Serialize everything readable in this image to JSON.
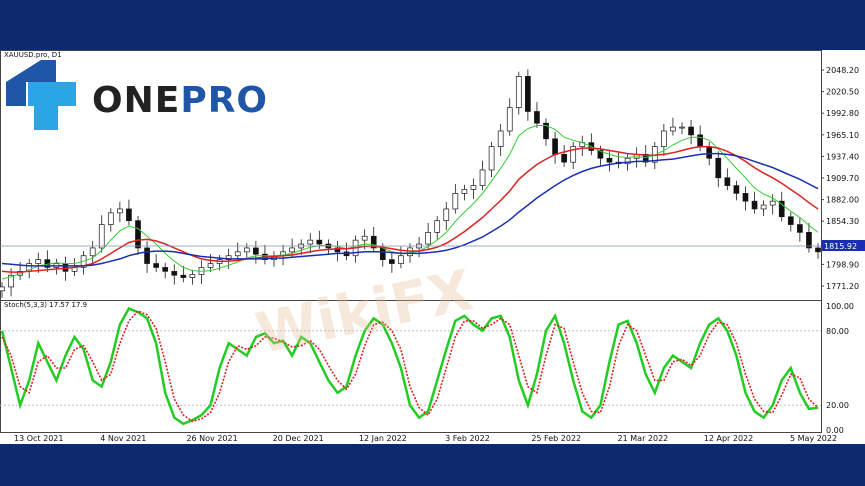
{
  "chart": {
    "symbol_label": "XAUUSD.pro, D1",
    "current_price": "1815.92",
    "stoch_label": "Stoch(5,3,3) 17.57 17.9",
    "brand": {
      "part1": "ONE",
      "part2": "PRO"
    },
    "watermark": "WikiFX",
    "colors": {
      "price_line": "#1a1a1a",
      "ma_fast": "#33cc33",
      "ma_mid": "#dd2222",
      "ma_slow": "#1a2fb0",
      "stoch_main": "#22cc22",
      "stoch_signal": "#dd2222",
      "current_price_bg": "#1a2fb0",
      "logo_blue": "#2aa6e6"
    }
  },
  "chart_data": [
    {
      "type": "line",
      "title": "",
      "ylim": [
        1771.2,
        2048.2
      ],
      "y_ticks": [
        "2048.20",
        "2020.50",
        "1992.80",
        "1965.10",
        "1937.40",
        "1909.70",
        "1882.00",
        "1854.30",
        "1826.60",
        "1798.90",
        "1771.20"
      ],
      "x_ticks": [
        "13 Oct 2021",
        "4 Nov 2021",
        "26 Nov 2021",
        "20 Dec 2021",
        "12 Jan 2022",
        "3 Feb 2022",
        "25 Feb 2022",
        "21 Mar 2022",
        "12 Apr 2022",
        "5 May 2022"
      ],
      "series": [
        {
          "values": [
            1770,
            1785,
            1790,
            1800,
            1805,
            1795,
            1800,
            1790,
            1795,
            1810,
            1820,
            1850,
            1865,
            1870,
            1855,
            1820,
            1800,
            1795,
            1790,
            1785,
            1782,
            1786,
            1795,
            1800,
            1805,
            1810,
            1815,
            1820,
            1812,
            1805,
            1810,
            1815,
            1820,
            1825,
            1830,
            1825,
            1820,
            1815,
            1810,
            1830,
            1835,
            1820,
            1805,
            1800,
            1810,
            1820,
            1825,
            1840,
            1855,
            1870,
            1890,
            1895,
            1900,
            1920,
            1950,
            1970,
            2000,
            2040,
            1995,
            1980,
            1960,
            1940,
            1930,
            1950,
            1955,
            1945,
            1935,
            1930,
            1928,
            1935,
            1940,
            1930,
            1950,
            1970,
            1975,
            1975,
            1965,
            1950,
            1935,
            1910,
            1900,
            1890,
            1880,
            1870,
            1875,
            1880,
            1860,
            1850,
            1840,
            1820,
            1815
          ]
        },
        {
          "values": [
            1780,
            1783,
            1787,
            1792,
            1797,
            1799,
            1801,
            1800,
            1800,
            1803,
            1807,
            1817,
            1830,
            1842,
            1848,
            1845,
            1835,
            1825,
            1813,
            1803,
            1795,
            1791,
            1790,
            1791,
            1794,
            1798,
            1802,
            1807,
            1810,
            1810,
            1810,
            1811,
            1813,
            1817,
            1821,
            1823,
            1823,
            1822,
            1819,
            1822,
            1825,
            1824,
            1820,
            1815,
            1813,
            1814,
            1816,
            1822,
            1830,
            1840,
            1854,
            1866,
            1877,
            1890,
            1906,
            1922,
            1940,
            1964,
            1973,
            1977,
            1977,
            1972,
            1962,
            1958,
            1955,
            1950,
            1944,
            1940,
            1937,
            1936,
            1937,
            1936,
            1939,
            1945,
            1952,
            1958,
            1962,
            1962,
            1958,
            1947,
            1935,
            1922,
            1910,
            1897,
            1889,
            1884,
            1876,
            1867,
            1859,
            1849,
            1840
          ]
        },
        {
          "values": [
            1790,
            1789,
            1789,
            1790,
            1791,
            1792,
            1793,
            1794,
            1795,
            1797,
            1800,
            1806,
            1813,
            1820,
            1827,
            1830,
            1831,
            1829,
            1825,
            1820,
            1815,
            1810,
            1806,
            1804,
            1803,
            1803,
            1804,
            1806,
            1807,
            1808,
            1809,
            1810,
            1811,
            1813,
            1815,
            1817,
            1818,
            1819,
            1819,
            1820,
            1822,
            1822,
            1821,
            1819,
            1817,
            1816,
            1816,
            1818,
            1821,
            1826,
            1833,
            1841,
            1850,
            1859,
            1870,
            1881,
            1893,
            1908,
            1918,
            1927,
            1934,
            1940,
            1943,
            1946,
            1948,
            1948,
            1947,
            1945,
            1943,
            1941,
            1940,
            1939,
            1939,
            1940,
            1942,
            1945,
            1948,
            1950,
            1950,
            1948,
            1944,
            1938,
            1931,
            1923,
            1916,
            1910,
            1903,
            1895,
            1887,
            1878,
            1870
          ]
        },
        {
          "values": [
            1800,
            1799,
            1798,
            1797,
            1797,
            1797,
            1797,
            1797,
            1797,
            1797,
            1798,
            1800,
            1803,
            1806,
            1810,
            1813,
            1815,
            1816,
            1816,
            1815,
            1813,
            1811,
            1809,
            1808,
            1807,
            1806,
            1806,
            1806,
            1806,
            1806,
            1807,
            1807,
            1808,
            1809,
            1810,
            1811,
            1812,
            1813,
            1813,
            1814,
            1815,
            1815,
            1815,
            1814,
            1813,
            1813,
            1813,
            1814,
            1815,
            1817,
            1820,
            1824,
            1829,
            1834,
            1841,
            1848,
            1856,
            1866,
            1875,
            1884,
            1892,
            1900,
            1907,
            1913,
            1918,
            1922,
            1925,
            1927,
            1929,
            1930,
            1931,
            1931,
            1932,
            1933,
            1934,
            1936,
            1938,
            1940,
            1941,
            1941,
            1940,
            1938,
            1935,
            1931,
            1927,
            1923,
            1918,
            1913,
            1908,
            1902,
            1896
          ]
        }
      ]
    },
    {
      "type": "line",
      "title": "",
      "ylim": [
        0,
        100
      ],
      "y_ticks": [
        "100.00",
        "80.00",
        "20.00",
        "0.00"
      ],
      "series": [
        {
          "values": [
            80,
            50,
            20,
            40,
            70,
            55,
            40,
            60,
            75,
            65,
            40,
            35,
            55,
            85,
            98,
            95,
            90,
            70,
            30,
            10,
            5,
            8,
            12,
            20,
            50,
            70,
            65,
            60,
            75,
            78,
            70,
            72,
            60,
            75,
            70,
            55,
            40,
            30,
            35,
            60,
            80,
            90,
            85,
            70,
            50,
            20,
            10,
            15,
            40,
            65,
            88,
            92,
            85,
            80,
            90,
            92,
            75,
            40,
            20,
            45,
            80,
            92,
            70,
            40,
            15,
            10,
            20,
            55,
            85,
            88,
            70,
            45,
            30,
            50,
            60,
            55,
            50,
            70,
            85,
            90,
            80,
            60,
            30,
            15,
            10,
            20,
            40,
            50,
            30,
            17,
            18
          ]
        },
        {
          "values": [
            75,
            60,
            35,
            30,
            55,
            60,
            50,
            50,
            65,
            68,
            55,
            40,
            45,
            70,
            88,
            96,
            93,
            82,
            55,
            25,
            12,
            7,
            9,
            14,
            30,
            55,
            68,
            65,
            68,
            75,
            74,
            71,
            67,
            68,
            72,
            65,
            52,
            40,
            33,
            45,
            68,
            85,
            87,
            80,
            65,
            35,
            18,
            12,
            25,
            50,
            75,
            88,
            88,
            82,
            85,
            90,
            85,
            60,
            35,
            30,
            60,
            85,
            82,
            55,
            30,
            15,
            14,
            35,
            68,
            85,
            80,
            60,
            40,
            40,
            55,
            57,
            52,
            60,
            77,
            87,
            85,
            70,
            45,
            25,
            15,
            14,
            28,
            45,
            42,
            25,
            18
          ]
        }
      ]
    }
  ]
}
